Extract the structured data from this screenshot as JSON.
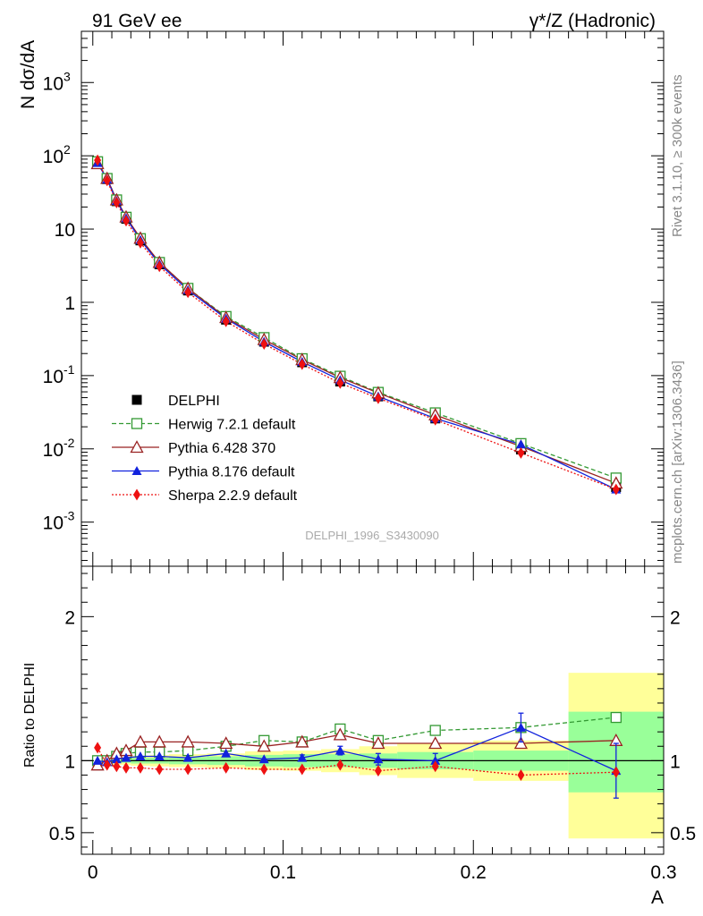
{
  "header": {
    "left": "91 GeV ee",
    "right": "γ*/Z (Hadronic)",
    "side_top": "Rivet 3.1.10, ≥ 300k events",
    "side_bottom": "mcplots.cern.ch [arXiv:1306.3436]",
    "watermark": "DELPHI_1996_S3430090"
  },
  "chart_data": [
    {
      "type": "scatter",
      "ylabel": "N dσ/dA",
      "yscale": "log",
      "ylim": [
        0.00025,
        5000
      ],
      "xlim": [
        -0.006,
        0.3
      ],
      "x": [
        0.0025,
        0.0075,
        0.0125,
        0.0175,
        0.025,
        0.035,
        0.05,
        0.07,
        0.09,
        0.11,
        0.13,
        0.15,
        0.18,
        0.225,
        0.275
      ],
      "yticks": [
        {
          "v": 0.001,
          "m": "10",
          "e": "-3"
        },
        {
          "v": 0.01,
          "m": "10",
          "e": "-2"
        },
        {
          "v": 0.1,
          "m": "10",
          "e": "-1"
        },
        {
          "v": 1,
          "m": "1",
          "e": ""
        },
        {
          "v": 10,
          "m": "10",
          "e": ""
        },
        {
          "v": 100,
          "m": "10",
          "e": "2"
        },
        {
          "v": 1000,
          "m": "10",
          "e": "3"
        }
      ],
      "series": [
        {
          "name": "DELPHI",
          "color": "#000000",
          "marker": "square-filled",
          "line": "none",
          "values": [
            80,
            48,
            24,
            13.8,
            7.0,
            3.3,
            1.45,
            0.58,
            0.29,
            0.152,
            0.083,
            0.052,
            0.026,
            0.0098,
            0.003
          ]
        },
        {
          "name": "Herwig 7.2.1 default",
          "color": "#339933",
          "marker": "square-open",
          "line": "dashed",
          "values": [
            83,
            49,
            25,
            14.5,
            7.4,
            3.5,
            1.55,
            0.64,
            0.33,
            0.17,
            0.098,
            0.059,
            0.031,
            0.0118,
            0.004
          ]
        },
        {
          "name": "Pythia 6.428 370",
          "color": "#992222",
          "marker": "triangle-open",
          "line": "solid",
          "values": [
            78,
            49,
            25,
            14.6,
            7.5,
            3.5,
            1.55,
            0.62,
            0.31,
            0.165,
            0.094,
            0.058,
            0.029,
            0.0108,
            0.0034
          ]
        },
        {
          "name": "Pythia 8.176 default",
          "color": "#1122dd",
          "marker": "triangle-filled",
          "line": "solid",
          "values": [
            80,
            47.5,
            24.3,
            14.1,
            7.1,
            3.35,
            1.47,
            0.6,
            0.29,
            0.154,
            0.087,
            0.052,
            0.026,
            0.0115,
            0.0028
          ]
        },
        {
          "name": "Sherpa 2.2.9 default",
          "color": "#ee1111",
          "marker": "diamond-filled",
          "line": "dotted",
          "values": [
            87,
            46,
            23,
            13,
            6.5,
            3.1,
            1.37,
            0.55,
            0.27,
            0.143,
            0.079,
            0.049,
            0.025,
            0.0088,
            0.0028
          ]
        }
      ]
    },
    {
      "type": "scatter",
      "ylabel": "Ratio to DELPHI",
      "xlabel": "A",
      "ylim": [
        0.35,
        2.35
      ],
      "xlim": [
        -0.006,
        0.3
      ],
      "xticks": [
        {
          "v": 0,
          "label": "0"
        },
        {
          "v": 0.1,
          "label": "0.1"
        },
        {
          "v": 0.2,
          "label": "0.2"
        },
        {
          "v": 0.3,
          "label": "0.3"
        }
      ],
      "yticks": [
        {
          "v": 0.5,
          "label": "0.5"
        },
        {
          "v": 1,
          "label": "1"
        },
        {
          "v": 2,
          "label": "2"
        }
      ],
      "bins": [
        0,
        0.005,
        0.01,
        0.015,
        0.02,
        0.03,
        0.04,
        0.06,
        0.08,
        0.1,
        0.12,
        0.14,
        0.16,
        0.2,
        0.25,
        0.3
      ],
      "band_stat_low": [
        0.985,
        0.985,
        0.985,
        0.985,
        0.98,
        0.98,
        0.975,
        0.97,
        0.96,
        0.955,
        0.955,
        0.95,
        0.94,
        0.93,
        0.78
      ],
      "band_stat_high": [
        1.015,
        1.015,
        1.015,
        1.015,
        1.02,
        1.02,
        1.025,
        1.03,
        1.04,
        1.045,
        1.045,
        1.05,
        1.06,
        1.07,
        1.34
      ],
      "band_tot_low": [
        0.97,
        0.97,
        0.97,
        0.97,
        0.965,
        0.96,
        0.955,
        0.95,
        0.935,
        0.93,
        0.92,
        0.9,
        0.88,
        0.86,
        0.46
      ],
      "band_tot_high": [
        1.03,
        1.03,
        1.03,
        1.03,
        1.035,
        1.04,
        1.045,
        1.05,
        1.065,
        1.07,
        1.08,
        1.1,
        1.12,
        1.14,
        1.61
      ],
      "series": [
        {
          "name": "Herwig 7.2.1 default",
          "values": [
            1.0,
            1.0,
            1.03,
            1.05,
            1.06,
            1.06,
            1.07,
            1.1,
            1.14,
            1.13,
            1.22,
            1.14,
            1.21,
            1.23,
            1.3
          ]
        },
        {
          "name": "Pythia 6.428 370",
          "values": [
            0.97,
            1.0,
            1.05,
            1.07,
            1.13,
            1.13,
            1.13,
            1.12,
            1.1,
            1.13,
            1.18,
            1.12,
            1.12,
            1.12,
            1.14
          ]
        },
        {
          "name": "Pythia 8.176 default",
          "values": [
            1.0,
            0.99,
            1.01,
            1.02,
            1.03,
            1.03,
            1.02,
            1.05,
            1.01,
            1.02,
            1.07,
            1.01,
            1.0,
            1.23,
            0.93
          ],
          "errors": [
            0,
            0,
            0,
            0,
            0,
            0,
            0,
            0,
            0,
            0.02,
            0.03,
            0.04,
            0.05,
            0.1,
            0.19
          ]
        },
        {
          "name": "Sherpa 2.2.9 default",
          "values": [
            1.09,
            0.97,
            0.96,
            0.95,
            0.95,
            0.94,
            0.94,
            0.95,
            0.94,
            0.94,
            0.97,
            0.93,
            0.96,
            0.9,
            0.92
          ]
        }
      ]
    }
  ]
}
